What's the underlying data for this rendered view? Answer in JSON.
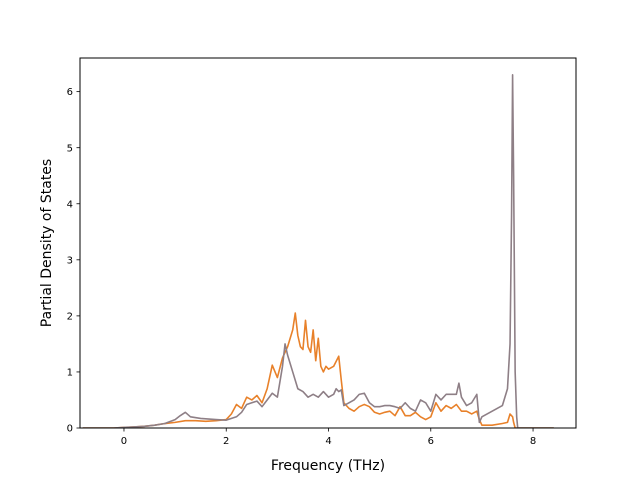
{
  "chart_data": {
    "type": "line",
    "title": "",
    "xlabel": "Frequency (THz)",
    "ylabel": "Partial Density of States",
    "xlim": [
      -0.86,
      8.84
    ],
    "ylim": [
      0,
      6.6
    ],
    "xticks": [
      0,
      2,
      4,
      6,
      8
    ],
    "xtick_labels": [
      "0",
      "2",
      "4",
      "6",
      "8"
    ],
    "yticks": [
      0,
      1,
      2,
      3,
      4,
      5,
      6
    ],
    "ytick_labels": [
      "0",
      "1",
      "2",
      "3",
      "4",
      "5",
      "6"
    ],
    "grid": false,
    "legend": false,
    "series": [
      {
        "color": "#e8812a",
        "x": [
          -0.8,
          -0.2,
          0.0,
          0.2,
          0.4,
          0.6,
          0.8,
          1.0,
          1.2,
          1.4,
          1.6,
          1.8,
          2.0,
          2.1,
          2.2,
          2.3,
          2.4,
          2.5,
          2.6,
          2.7,
          2.8,
          2.9,
          3.0,
          3.1,
          3.2,
          3.3,
          3.35,
          3.4,
          3.45,
          3.5,
          3.55,
          3.6,
          3.65,
          3.7,
          3.75,
          3.8,
          3.85,
          3.9,
          3.95,
          4.0,
          4.1,
          4.2,
          4.25,
          4.3,
          4.4,
          4.5,
          4.6,
          4.7,
          4.8,
          4.9,
          5.0,
          5.1,
          5.2,
          5.3,
          5.4,
          5.5,
          5.6,
          5.7,
          5.8,
          5.9,
          6.0,
          6.1,
          6.2,
          6.3,
          6.4,
          6.5,
          6.6,
          6.7,
          6.8,
          6.9,
          6.95,
          7.0,
          7.2,
          7.4,
          7.5,
          7.55,
          7.6,
          7.62,
          7.65,
          7.7,
          7.8,
          8.0,
          8.4
        ],
        "y": [
          0.0,
          0.0,
          0.01,
          0.02,
          0.03,
          0.05,
          0.08,
          0.1,
          0.13,
          0.13,
          0.12,
          0.13,
          0.15,
          0.25,
          0.42,
          0.35,
          0.55,
          0.5,
          0.58,
          0.45,
          0.7,
          1.12,
          0.9,
          1.25,
          1.45,
          1.75,
          2.05,
          1.65,
          1.45,
          1.4,
          1.92,
          1.45,
          1.35,
          1.75,
          1.2,
          1.6,
          1.1,
          1.0,
          1.1,
          1.05,
          1.1,
          1.28,
          0.85,
          0.45,
          0.35,
          0.3,
          0.38,
          0.42,
          0.38,
          0.28,
          0.25,
          0.28,
          0.3,
          0.22,
          0.38,
          0.22,
          0.22,
          0.28,
          0.2,
          0.15,
          0.2,
          0.45,
          0.3,
          0.4,
          0.35,
          0.42,
          0.3,
          0.3,
          0.25,
          0.3,
          0.15,
          0.05,
          0.05,
          0.08,
          0.1,
          0.25,
          0.2,
          0.1,
          0.0,
          0.0,
          0.0,
          0.0,
          0.0
        ]
      },
      {
        "color": "#8e7f86",
        "x": [
          -0.8,
          -0.2,
          0.0,
          0.2,
          0.4,
          0.6,
          0.8,
          1.0,
          1.1,
          1.2,
          1.3,
          1.5,
          1.8,
          2.0,
          2.2,
          2.3,
          2.4,
          2.5,
          2.6,
          2.7,
          2.8,
          2.9,
          3.0,
          3.1,
          3.15,
          3.2,
          3.3,
          3.4,
          3.5,
          3.6,
          3.7,
          3.8,
          3.9,
          4.0,
          4.1,
          4.15,
          4.2,
          4.25,
          4.3,
          4.4,
          4.5,
          4.6,
          4.7,
          4.8,
          4.9,
          5.0,
          5.1,
          5.2,
          5.3,
          5.4,
          5.5,
          5.6,
          5.7,
          5.8,
          5.9,
          6.0,
          6.1,
          6.2,
          6.3,
          6.4,
          6.5,
          6.55,
          6.6,
          6.7,
          6.8,
          6.9,
          6.95,
          7.0,
          7.2,
          7.4,
          7.5,
          7.55,
          7.58,
          7.6,
          7.62,
          7.65,
          7.68,
          7.7,
          7.8,
          8.0,
          8.4
        ],
        "y": [
          0.0,
          0.0,
          0.01,
          0.02,
          0.03,
          0.05,
          0.08,
          0.15,
          0.22,
          0.28,
          0.2,
          0.17,
          0.15,
          0.14,
          0.2,
          0.28,
          0.42,
          0.45,
          0.48,
          0.38,
          0.5,
          0.62,
          0.55,
          1.1,
          1.5,
          1.3,
          1.0,
          0.7,
          0.65,
          0.55,
          0.6,
          0.55,
          0.65,
          0.55,
          0.6,
          0.7,
          0.65,
          0.68,
          0.4,
          0.45,
          0.5,
          0.6,
          0.62,
          0.45,
          0.38,
          0.38,
          0.4,
          0.4,
          0.38,
          0.35,
          0.45,
          0.35,
          0.3,
          0.5,
          0.45,
          0.3,
          0.6,
          0.5,
          0.6,
          0.6,
          0.6,
          0.8,
          0.55,
          0.4,
          0.45,
          0.6,
          0.1,
          0.2,
          0.3,
          0.4,
          0.7,
          1.5,
          3.8,
          6.3,
          4.5,
          1.0,
          0.2,
          0.0,
          0.0,
          0.0,
          0.0
        ]
      }
    ]
  }
}
